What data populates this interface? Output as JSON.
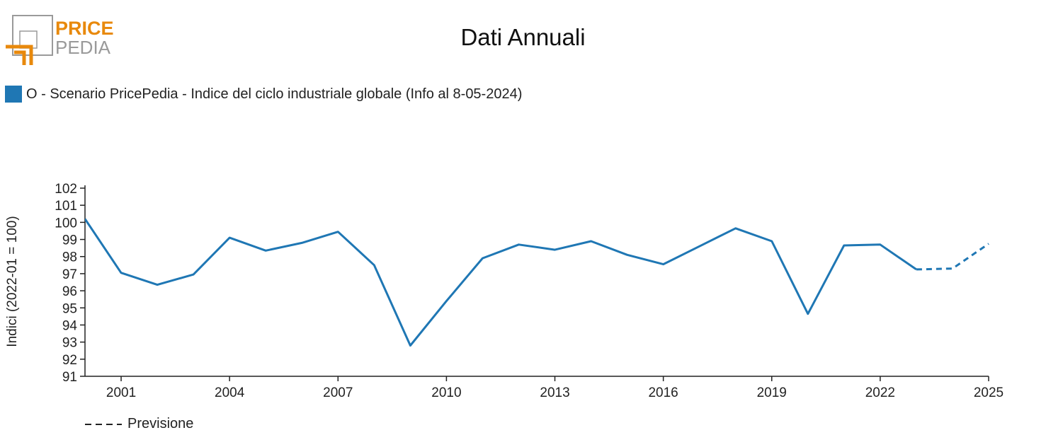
{
  "logo": {
    "word_top": "PRICE",
    "word_bottom": "PEDIA"
  },
  "colors": {
    "series": "#1f77b4",
    "logo_orange": "#e8890c",
    "logo_gray": "#9a9a9a",
    "axis": "#222222"
  },
  "chart_data": {
    "type": "line",
    "title": "Dati Annuali",
    "ylabel": "Indici (2022-01 = 100)",
    "xlabel": "",
    "ylim": [
      91,
      102
    ],
    "xlim": [
      2000,
      2025
    ],
    "yticks": [
      91,
      92,
      93,
      94,
      95,
      96,
      97,
      98,
      99,
      100,
      101,
      102
    ],
    "xticks": [
      2001,
      2004,
      2007,
      2010,
      2013,
      2016,
      2019,
      2022,
      2025
    ],
    "grid": false,
    "legend_position": "top-left",
    "series": [
      {
        "name": "O - Scenario PricePedia - Indice del ciclo industriale globale (Info al 8-05-2024)",
        "color": "#1f77b4",
        "x": [
          2000,
          2001,
          2002,
          2003,
          2004,
          2005,
          2006,
          2007,
          2008,
          2009,
          2010,
          2011,
          2012,
          2013,
          2014,
          2015,
          2016,
          2017,
          2018,
          2019,
          2020,
          2021,
          2022,
          2023
        ],
        "values": [
          100.2,
          97.05,
          96.35,
          96.95,
          99.1,
          98.35,
          98.8,
          99.45,
          97.5,
          92.8,
          95.4,
          97.9,
          98.7,
          98.4,
          98.9,
          98.1,
          97.55,
          98.6,
          99.65,
          98.9,
          94.65,
          98.65,
          98.7,
          97.25
        ],
        "forecast_x": [
          2023,
          2024,
          2025
        ],
        "forecast_values": [
          97.25,
          97.3,
          98.75
        ]
      }
    ],
    "forecast_label": "Previsione"
  }
}
